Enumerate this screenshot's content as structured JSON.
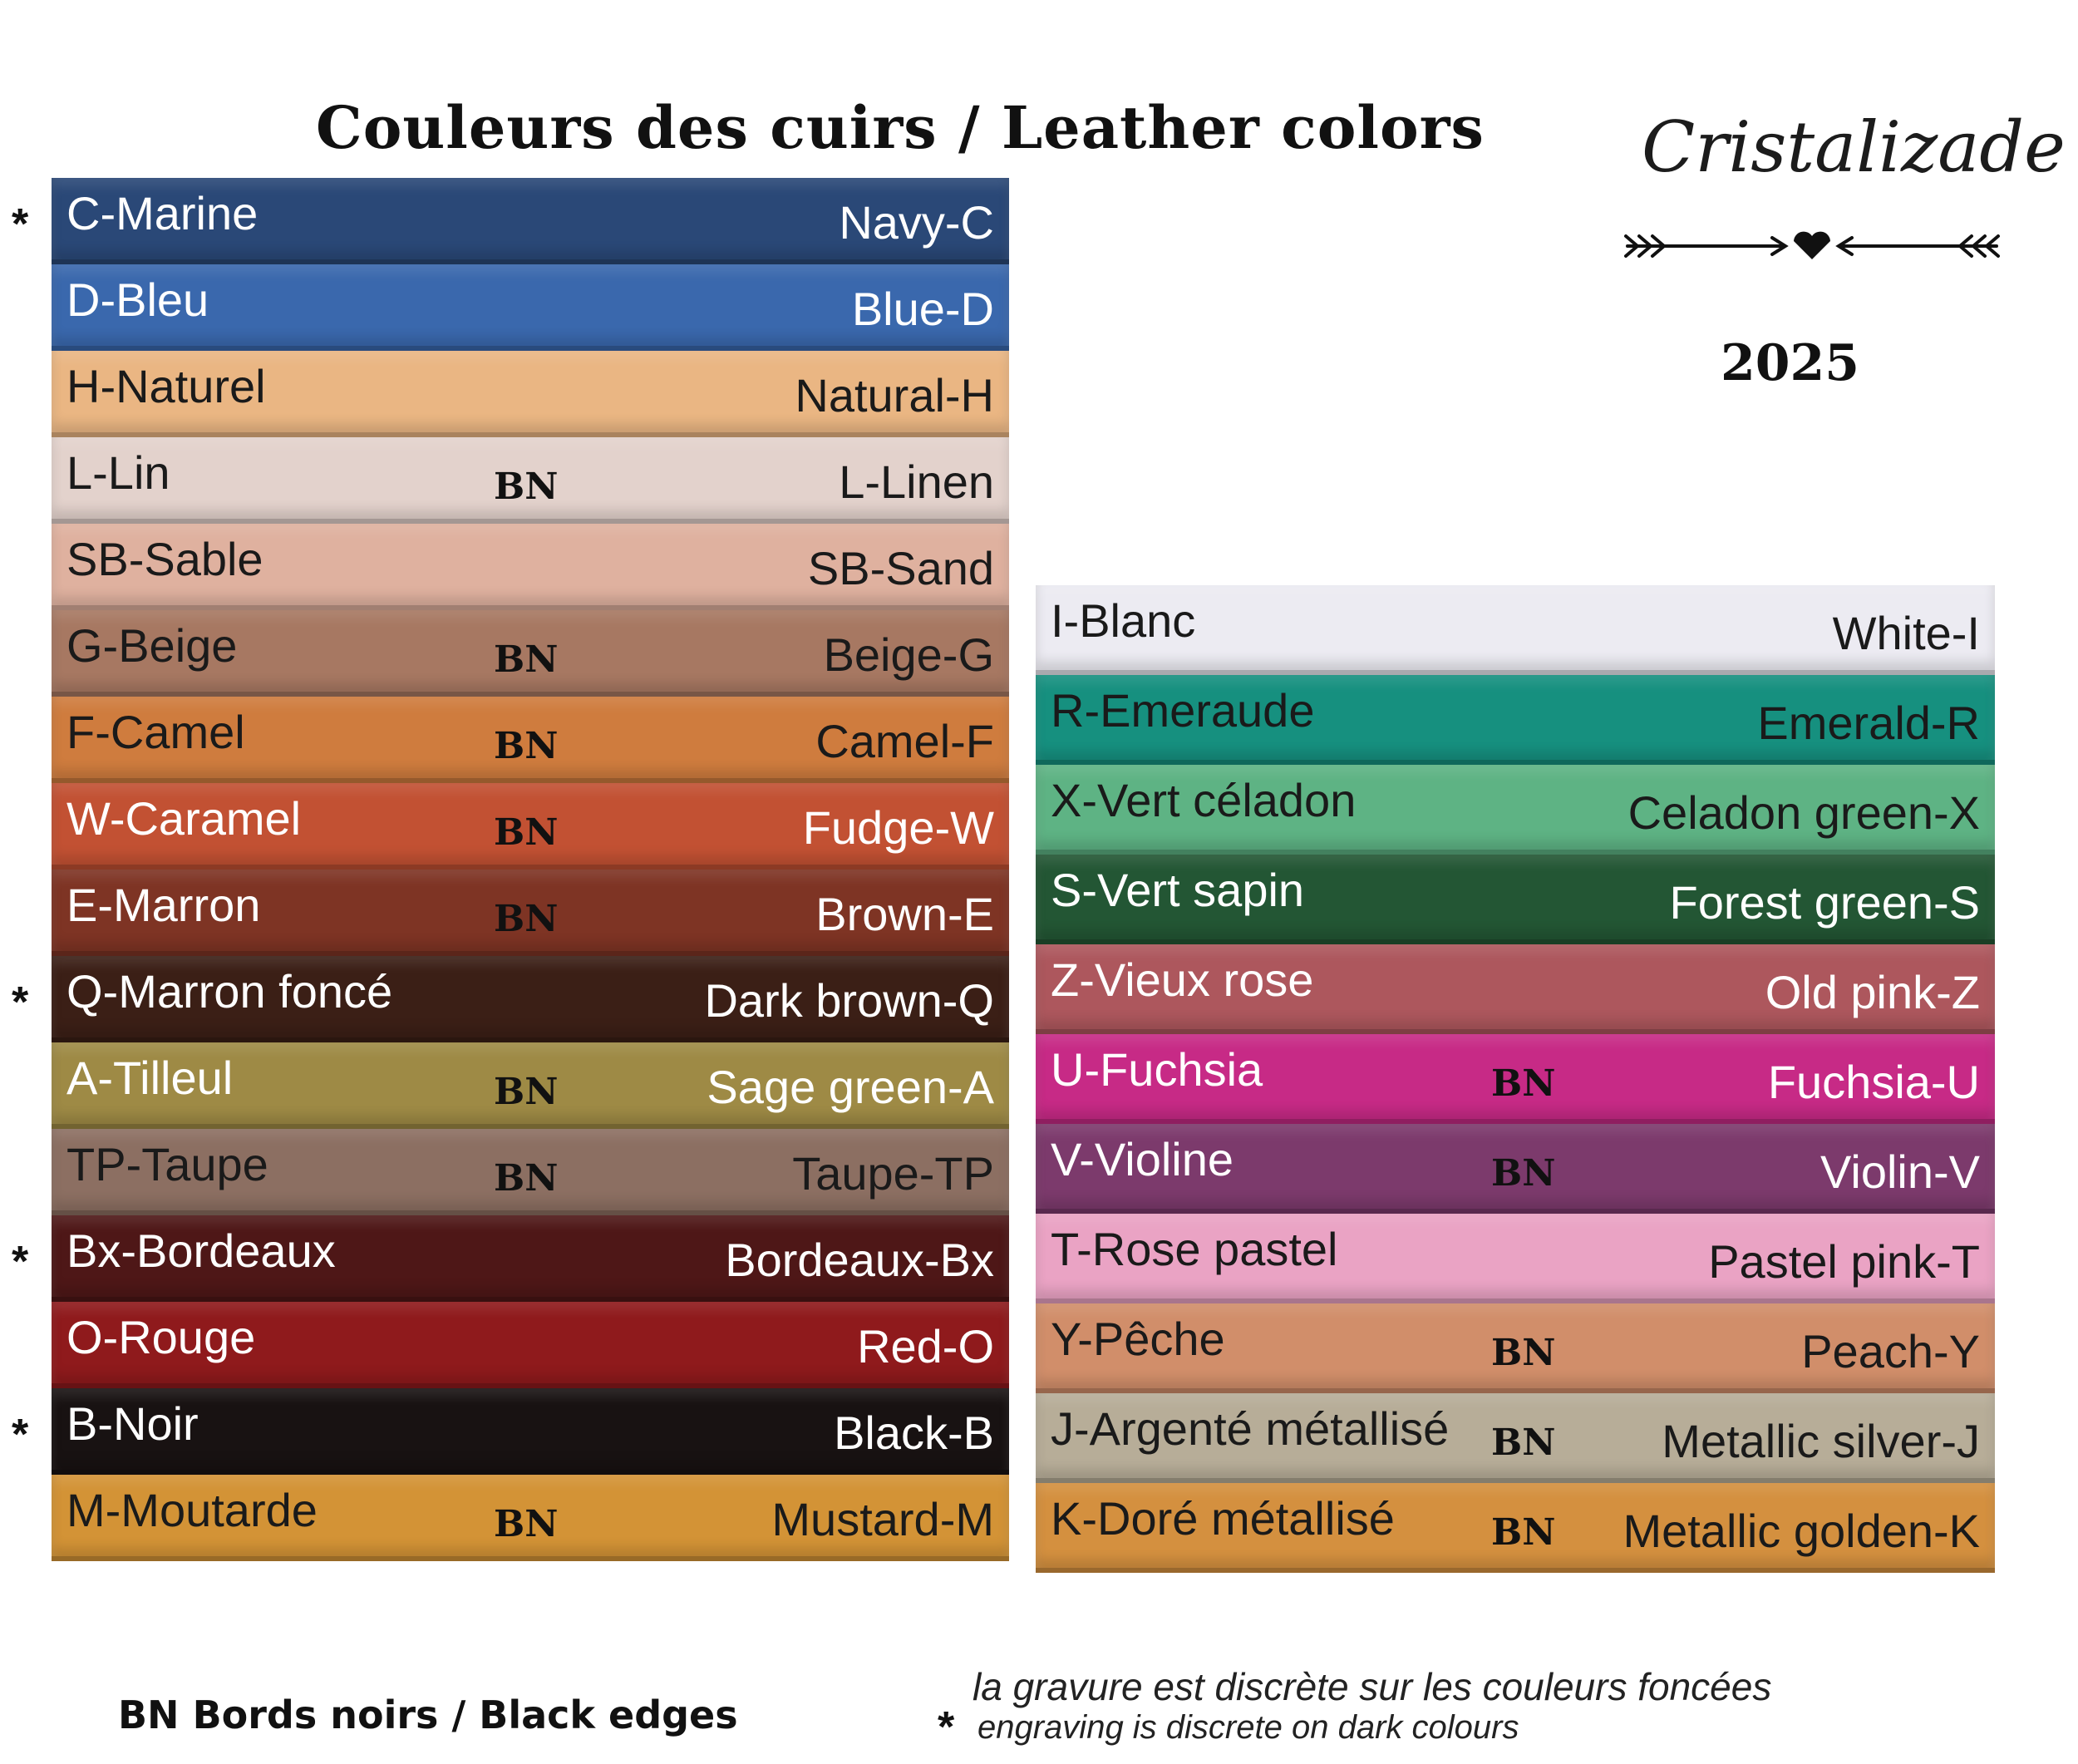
{
  "title": "Couleurs des cuirs  /  Leather colors",
  "brand": "Cristalizade",
  "year": "2025",
  "left_column": [
    {
      "fr": "C-Marine",
      "en": "Navy-C",
      "bn": "",
      "star": "*",
      "color": "#2a4877",
      "text_color": "#ffffff"
    },
    {
      "fr": "D-Bleu",
      "en": "Blue-D",
      "bn": "",
      "star": "",
      "color": "#3a68ad",
      "text_color": "#ffffff"
    },
    {
      "fr": "H-Naturel",
      "en": "Natural-H",
      "bn": "",
      "star": "",
      "color": "#eab683",
      "text_color": "#1a1a1a"
    },
    {
      "fr": "L-Lin",
      "en": "L-Linen",
      "bn": "BN",
      "star": "",
      "color": "#e3d2cc",
      "text_color": "#1a1a1a"
    },
    {
      "fr": "SB-Sable",
      "en": "SB-Sand",
      "bn": "",
      "star": "",
      "color": "#dfb19f",
      "text_color": "#1a1a1a"
    },
    {
      "fr": "G-Beige",
      "en": "Beige-G",
      "bn": "BN",
      "star": "",
      "color": "#a77862",
      "text_color": "#1a1a1a"
    },
    {
      "fr": "F-Camel",
      "en": "Camel-F",
      "bn": "BN",
      "star": "",
      "color": "#cf7c3e",
      "text_color": "#1a1a1a"
    },
    {
      "fr": "W-Caramel",
      "en": "Fudge-W",
      "bn": "BN",
      "star": "",
      "color": "#c25133",
      "text_color": "#ffffff"
    },
    {
      "fr": "E-Marron",
      "en": "Brown-E",
      "bn": "BN",
      "star": "",
      "color": "#7e3424",
      "text_color": "#ffffff"
    },
    {
      "fr": "Q-Marron foncé",
      "en": "Dark brown-Q",
      "bn": "",
      "star": "*",
      "color": "#3b1f16",
      "text_color": "#ffffff"
    },
    {
      "fr": "A-Tilleul",
      "en": "Sage green-A",
      "bn": "BN",
      "star": "",
      "color": "#9e8a45",
      "text_color": "#ffffff"
    },
    {
      "fr": "TP-Taupe",
      "en": "Taupe-TP",
      "bn": "BN",
      "star": "",
      "color": "#8c6f62",
      "text_color": "#1a1a1a"
    },
    {
      "fr": "Bx-Bordeaux",
      "en": "Bordeaux-Bx",
      "bn": "",
      "star": "*",
      "color": "#4e1717",
      "text_color": "#ffffff"
    },
    {
      "fr": "O-Rouge",
      "en": "Red-O",
      "bn": "",
      "star": "",
      "color": "#8f1a1c",
      "text_color": "#ffffff"
    },
    {
      "fr": "B-Noir",
      "en": "Black-B",
      "bn": "",
      "star": "*",
      "color": "#181212",
      "text_color": "#ffffff"
    },
    {
      "fr": "M-Moutarde",
      "en": "Mustard-M",
      "bn": "BN",
      "star": "",
      "color": "#d39336",
      "text_color": "#1a1a1a"
    }
  ],
  "right_column": [
    {
      "fr": "I-Blanc",
      "en": "White-I",
      "bn": "",
      "color": "#ecebf2",
      "text_color": "#1a1a1a"
    },
    {
      "fr": "R-Emeraude",
      "en": "Emerald-R",
      "bn": "",
      "color": "#16907f",
      "text_color": "#1a1a1a"
    },
    {
      "fr": "X-Vert céladon",
      "en": "Celadon green-X",
      "bn": "",
      "color": "#5eb384",
      "text_color": "#1a1a1a"
    },
    {
      "fr": "S-Vert sapin",
      "en": "Forest green-S",
      "bn": "",
      "color": "#235634",
      "text_color": "#ffffff"
    },
    {
      "fr": "Z-Vieux rose",
      "en": "Old pink-Z",
      "bn": "",
      "color": "#ad575d",
      "text_color": "#ffffff"
    },
    {
      "fr": "U-Fuchsia",
      "en": "Fuchsia-U",
      "bn": "BN",
      "color": "#c72a86",
      "text_color": "#ffffff"
    },
    {
      "fr": "V-Violine",
      "en": "Violin-V",
      "bn": "BN",
      "color": "#7c3a6c",
      "text_color": "#ffffff"
    },
    {
      "fr": "T-Rose pastel",
      "en": "Pastel pink-T",
      "bn": "",
      "color": "#eaa3c4",
      "text_color": "#1a1a1a"
    },
    {
      "fr": "Y-Pêche",
      "en": "Peach-Y",
      "bn": "BN",
      "color": "#d18e6a",
      "text_color": "#1a1a1a"
    },
    {
      "fr": "J-Argenté métallisé",
      "en": "Metallic silver-J",
      "bn": "BN",
      "color": "#b7ad98",
      "text_color": "#1a1a1a"
    },
    {
      "fr": "K-Doré métallisé",
      "en": "Metallic golden-K",
      "bn": "BN",
      "color": "#d4903f",
      "text_color": "#1a1a1a"
    }
  ],
  "legend": {
    "bn_text": "BN  Bords noirs  /  Black edges"
  },
  "note": {
    "star": "*",
    "fr": "la gravure est discrète sur les couleurs foncées",
    "en": "engraving is discrete on dark colours"
  }
}
